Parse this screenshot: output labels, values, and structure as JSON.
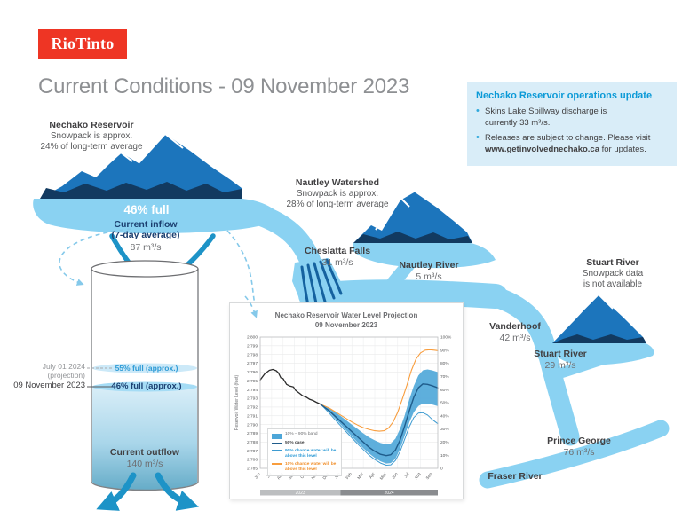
{
  "brand": {
    "logo_text": "RioTinto",
    "logo_color": "#EE3524"
  },
  "page": {
    "title": "Current Conditions - 09 November 2023"
  },
  "ops_update": {
    "title": "Nechako Reservoir operations update",
    "bullet1": {
      "line1": "Skins Lake Spillway discharge is",
      "line2": "currently 33 m³/s."
    },
    "bullet2": {
      "line1": "Releases are subject to change. Please visit",
      "link": "www.getinvolvednechako.ca",
      "after": " for updates."
    }
  },
  "reservoir": {
    "name": "Nechako Reservoir",
    "snow1": "Snowpack is approx.",
    "snow2": "24% of long-term average",
    "fullness": "46% full",
    "inflow1": "Current inflow",
    "inflow2": "(7-day average)",
    "inflow_value": "87 m³/s"
  },
  "cylinder": {
    "proj_date": "July 01 2024",
    "proj_note": "(projection)",
    "proj_level": "55% full (approx.)",
    "cur_date": "09 November 2023",
    "cur_level": "46% full (approx.)",
    "outflow_label": "Current outflow",
    "outflow_value": "140 m³/s"
  },
  "nautley": {
    "name": "Nautley Watershed",
    "snow1": "Snowpack is approx.",
    "snow2": "28% of long-term average"
  },
  "stuart_mtn": {
    "name": "Stuart River",
    "line1": "Snowpack data",
    "line2": "is not available"
  },
  "flows": {
    "cheslatta": {
      "name": "Cheslatta Falls",
      "value": "31 m³/s"
    },
    "nautley_river": {
      "name": "Nautley River",
      "value": "5 m³/s"
    },
    "vanderhoof": {
      "name": "Vanderhoof",
      "value": "42 m³/s"
    },
    "stuart_river": {
      "name": "Stuart River",
      "value": "29 m³/s"
    },
    "prince_george": {
      "name": "Prince George",
      "value": "76 m³/s"
    },
    "fraser": {
      "name": "Fraser River"
    }
  },
  "colors": {
    "brand_red": "#EE3524",
    "river_blue": "#8AD2F2",
    "mountain_blue": "#1C75BC",
    "mountain_navy": "#123A60",
    "arrow_teal": "#1D93C7",
    "accent_blue": "#0C9AD7",
    "info_bg": "#D9EDF8",
    "band_blue": "#4DA6D8",
    "orange": "#F89D3D"
  },
  "chart_data": {
    "type": "line",
    "title": "Nechako Reservoir Water Level Projection",
    "subtitle": "09 November 2023",
    "ylabel_left": "Reservoir Water Level (feet)",
    "ylim": [
      2785,
      2800
    ],
    "x_domain": [
      0,
      15.5
    ],
    "x_ticks": [
      "Jun",
      "Jul",
      "Aug",
      "Sep",
      "Oct",
      "Nov",
      "Dec",
      "Jan",
      "Feb",
      "Mar",
      "Apr",
      "May",
      "Jun",
      "Jul",
      "Aug",
      "Sep"
    ],
    "y_ticks_left": [
      "2,800",
      "2,799",
      "2,798",
      "2,797",
      "2,796",
      "2,795",
      "2,794",
      "2,793",
      "2,792",
      "2,791",
      "2,790",
      "2,789",
      "2,788",
      "2,787",
      "2,786",
      "2,785"
    ],
    "y_ticks_right": [
      "100%",
      "90%",
      "80%",
      "70%",
      "60%",
      "50%",
      "40%",
      "30%",
      "20%",
      "10%",
      "0"
    ],
    "grid": true,
    "legend_position": "lower-left",
    "year_bars": [
      {
        "label": "2023",
        "from": 0,
        "to": 7,
        "color": "#BCBEC0"
      },
      {
        "label": "2024",
        "from": 7,
        "to": 15.5,
        "color": "#8A8C8F"
      }
    ],
    "legend": [
      {
        "type": "band",
        "color": "#4DA6D8",
        "label": "10% – 90% band",
        "text_color": "#6D6E71",
        "bold": false
      },
      {
        "type": "line",
        "color": "#1F5C8B",
        "label": "50% case",
        "text_color": "#404042",
        "bold": true
      },
      {
        "type": "line",
        "color": "#3D9BD1",
        "label": "90% chance water will be above this level",
        "text_color": "#2E9BD6",
        "bold": true
      },
      {
        "type": "line",
        "color": "#F89D3D",
        "label": "10% chance water will be above this level",
        "text_color": "#F1902D",
        "bold": true
      }
    ],
    "band": {
      "name": "10% – 90% band",
      "color": "#4DA6D8",
      "upper": [
        [
          5.3,
          2792.3
        ],
        [
          6,
          2791.85
        ],
        [
          6.5,
          2791.45
        ],
        [
          7,
          2791.0
        ],
        [
          7.5,
          2790.5
        ],
        [
          8,
          2790.0
        ],
        [
          8.5,
          2789.5
        ],
        [
          9,
          2789.0
        ],
        [
          9.5,
          2788.55
        ],
        [
          10,
          2788.2
        ],
        [
          10.5,
          2787.9
        ],
        [
          11,
          2787.75
        ],
        [
          11.4,
          2787.85
        ],
        [
          11.8,
          2788.4
        ],
        [
          12.2,
          2789.5
        ],
        [
          12.6,
          2791.0
        ],
        [
          13,
          2792.8
        ],
        [
          13.4,
          2794.4
        ],
        [
          13.8,
          2795.6
        ],
        [
          14.2,
          2796.2
        ],
        [
          14.6,
          2796.3
        ],
        [
          15,
          2796.2
        ],
        [
          15.5,
          2796.0
        ]
      ],
      "lower": [
        [
          5.3,
          2792.3
        ],
        [
          6,
          2791.45
        ],
        [
          6.5,
          2790.75
        ],
        [
          7,
          2790.05
        ],
        [
          7.5,
          2789.35
        ],
        [
          8,
          2788.65
        ],
        [
          8.5,
          2787.95
        ],
        [
          9,
          2787.3
        ],
        [
          9.5,
          2786.7
        ],
        [
          10,
          2786.2
        ],
        [
          10.5,
          2785.8
        ],
        [
          11,
          2785.55
        ],
        [
          11.4,
          2785.6
        ],
        [
          11.8,
          2786.1
        ],
        [
          12.2,
          2787.2
        ],
        [
          12.6,
          2788.7
        ],
        [
          13,
          2790.2
        ],
        [
          13.4,
          2791.4
        ],
        [
          13.8,
          2792.1
        ],
        [
          14.2,
          2792.4
        ],
        [
          14.6,
          2792.4
        ],
        [
          15,
          2792.3
        ],
        [
          15.5,
          2792.1
        ]
      ]
    },
    "series": [
      {
        "name": "Historical water level",
        "color": "#2B2B2B",
        "width": 1.3,
        "points": [
          [
            0,
            2795.1
          ],
          [
            0.4,
            2795.8
          ],
          [
            0.8,
            2796.2
          ],
          [
            1.1,
            2796.3
          ],
          [
            1.4,
            2796.15
          ],
          [
            1.6,
            2795.9
          ],
          [
            1.8,
            2795.35
          ],
          [
            2.0,
            2795.25
          ],
          [
            2.3,
            2794.6
          ],
          [
            2.6,
            2794.4
          ],
          [
            2.9,
            2794.3
          ],
          [
            3.1,
            2793.9
          ],
          [
            3.4,
            2793.6
          ],
          [
            3.7,
            2793.3
          ],
          [
            4.0,
            2793.15
          ],
          [
            4.3,
            2792.9
          ],
          [
            4.6,
            2792.75
          ],
          [
            4.9,
            2792.55
          ],
          [
            5.3,
            2792.3
          ]
        ]
      },
      {
        "name": "10% chance water will be above this level",
        "color": "#F89D3D",
        "width": 1.1,
        "points": [
          [
            5.3,
            2792.3
          ],
          [
            6,
            2791.9
          ],
          [
            6.5,
            2791.5
          ],
          [
            7,
            2791.1
          ],
          [
            7.5,
            2790.7
          ],
          [
            8,
            2790.3
          ],
          [
            8.5,
            2789.95
          ],
          [
            9,
            2789.65
          ],
          [
            9.5,
            2789.45
          ],
          [
            10,
            2789.3
          ],
          [
            10.4,
            2789.25
          ],
          [
            10.8,
            2789.3
          ],
          [
            11.2,
            2789.6
          ],
          [
            11.6,
            2790.3
          ],
          [
            12,
            2791.4
          ],
          [
            12.4,
            2792.9
          ],
          [
            12.8,
            2794.5
          ],
          [
            13.2,
            2796.2
          ],
          [
            13.6,
            2797.5
          ],
          [
            14,
            2798.2
          ],
          [
            14.4,
            2798.5
          ],
          [
            14.8,
            2798.55
          ],
          [
            15.2,
            2798.5
          ],
          [
            15.5,
            2798.45
          ]
        ]
      },
      {
        "name": "90% chance water will be above this level",
        "color": "#3D9BD1",
        "width": 1.0,
        "points": [
          [
            5.3,
            2792.3
          ],
          [
            6,
            2791.35
          ],
          [
            6.5,
            2790.6
          ],
          [
            7,
            2789.9
          ],
          [
            7.5,
            2789.2
          ],
          [
            8,
            2788.5
          ],
          [
            8.5,
            2787.8
          ],
          [
            9,
            2787.15
          ],
          [
            9.5,
            2786.5
          ],
          [
            10,
            2786.0
          ],
          [
            10.5,
            2785.6
          ],
          [
            11,
            2785.35
          ],
          [
            11.4,
            2785.4
          ],
          [
            11.8,
            2785.9
          ],
          [
            12.2,
            2786.9
          ],
          [
            12.6,
            2788.3
          ],
          [
            13,
            2789.7
          ],
          [
            13.4,
            2790.8
          ],
          [
            13.8,
            2791.3
          ],
          [
            14.2,
            2791.35
          ],
          [
            14.6,
            2791.1
          ],
          [
            15,
            2790.6
          ],
          [
            15.5,
            2790.1
          ]
        ]
      },
      {
        "name": "50% case",
        "color": "#1F5C8B",
        "width": 1.4,
        "points": [
          [
            5.3,
            2792.3
          ],
          [
            6,
            2791.6
          ],
          [
            6.5,
            2791.0
          ],
          [
            7,
            2790.4
          ],
          [
            7.5,
            2789.8
          ],
          [
            8,
            2789.2
          ],
          [
            8.5,
            2788.6
          ],
          [
            9,
            2788.0
          ],
          [
            9.5,
            2787.4
          ],
          [
            10,
            2786.95
          ],
          [
            10.5,
            2786.6
          ],
          [
            11,
            2786.45
          ],
          [
            11.4,
            2786.55
          ],
          [
            11.8,
            2787.1
          ],
          [
            12.2,
            2788.2
          ],
          [
            12.6,
            2789.8
          ],
          [
            13,
            2791.5
          ],
          [
            13.4,
            2793.1
          ],
          [
            13.8,
            2794.2
          ],
          [
            14.2,
            2794.65
          ],
          [
            14.6,
            2794.6
          ],
          [
            15,
            2794.45
          ],
          [
            15.5,
            2794.2
          ]
        ]
      }
    ]
  }
}
